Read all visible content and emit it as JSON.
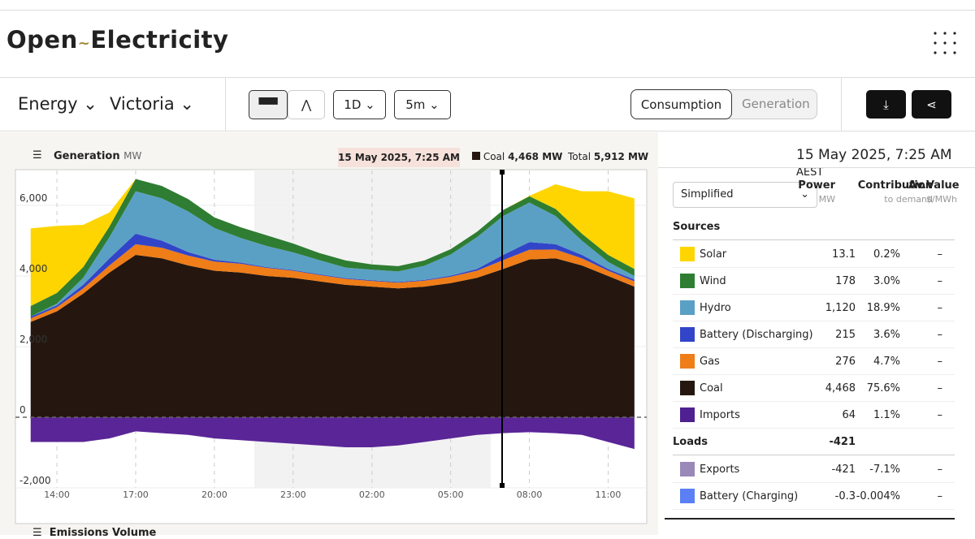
{
  "header": {
    "logo_left": "Open",
    "logo_right": "Electricity"
  },
  "toolbar": {
    "metric": "Energy",
    "region": "Victoria",
    "range": "1D",
    "interval": "5m",
    "view_active": "Consumption",
    "view_other": "Generation"
  },
  "chart_header": {
    "title": "Generation",
    "unit": "MW",
    "time": "15 May 2025, 7:25 AM",
    "hover_series": "Coal",
    "hover_value": "4,468 MW",
    "total_label": "Total",
    "total_value": "5,912 MW"
  },
  "next_chart": {
    "title": "Emissions Volume"
  },
  "chart_data": {
    "type": "area",
    "stacked": true,
    "x": [
      13,
      14,
      15,
      16,
      17,
      18,
      19,
      20,
      21,
      22,
      23,
      24,
      25,
      26,
      27,
      28,
      29,
      30,
      31,
      32,
      33,
      34,
      35,
      36
    ],
    "xlim": [
      12.42,
      36.47
    ],
    "xticks": [
      {
        "value": 14,
        "label": "14:00"
      },
      {
        "value": 17,
        "label": "17:00"
      },
      {
        "value": 20,
        "label": "20:00"
      },
      {
        "value": 23,
        "label": "23:00"
      },
      {
        "value": 26,
        "label": "02:00"
      },
      {
        "value": 29,
        "label": "05:00"
      },
      {
        "value": 32,
        "label": "08:00"
      },
      {
        "value": 35,
        "label": "11:00"
      }
    ],
    "ylim": [
      -2000,
      6990
    ],
    "yticks": [
      {
        "value": -2000,
        "label": "-2,000"
      },
      0,
      {
        "value": 2000,
        "label": "2,000"
      },
      {
        "value": 4000,
        "label": "4,000"
      },
      {
        "value": 6000,
        "label": "6,000"
      }
    ],
    "grid": true,
    "series": [
      {
        "name": "Coal",
        "color": "#25170f",
        "values": [
          2700,
          3000,
          3500,
          4100,
          4600,
          4500,
          4300,
          4150,
          4100,
          4000,
          3950,
          3850,
          3750,
          3700,
          3650,
          3700,
          3800,
          3950,
          4200,
          4470,
          4500,
          4300,
          4000,
          3700
        ]
      },
      {
        "name": "Gas",
        "color": "#ef7d18",
        "values": [
          100,
          120,
          150,
          200,
          300,
          300,
          280,
          260,
          250,
          230,
          200,
          180,
          170,
          160,
          160,
          170,
          180,
          200,
          250,
          276,
          250,
          200,
          150,
          150
        ]
      },
      {
        "name": "Battery (Discharging)",
        "color": "#3245c8",
        "values": [
          50,
          50,
          100,
          200,
          300,
          200,
          100,
          50,
          30,
          20,
          20,
          20,
          20,
          20,
          20,
          20,
          30,
          50,
          150,
          215,
          150,
          100,
          50,
          50
        ]
      },
      {
        "name": "Hydro",
        "color": "#5aa0c4",
        "values": [
          0,
          50,
          200,
          600,
          1200,
          1200,
          1150,
          900,
          700,
          600,
          500,
          400,
          300,
          300,
          300,
          400,
          600,
          900,
          1100,
          1120,
          800,
          400,
          200,
          100
        ]
      },
      {
        "name": "Wind",
        "color": "#2e7d32",
        "values": [
          300,
          300,
          300,
          300,
          350,
          350,
          350,
          300,
          300,
          300,
          250,
          200,
          200,
          150,
          150,
          150,
          150,
          150,
          170,
          178,
          200,
          200,
          200,
          200
        ]
      },
      {
        "name": "Solar",
        "color": "#fed500",
        "values": [
          2200,
          1900,
          1200,
          400,
          0,
          0,
          0,
          0,
          0,
          0,
          0,
          0,
          0,
          0,
          0,
          0,
          0,
          0,
          0,
          13,
          700,
          1200,
          1800,
          2000
        ]
      },
      {
        "name": "Exports",
        "color": "#5a2597",
        "values": [
          -700,
          -700,
          -700,
          -600,
          -400,
          -450,
          -500,
          -600,
          -650,
          -700,
          -750,
          -800,
          -850,
          -850,
          -800,
          -700,
          -600,
          -500,
          -450,
          -421,
          -450,
          -500,
          -700,
          -900
        ]
      }
    ]
  },
  "table": {
    "time": "15 May 2025, 7:25 AM",
    "tz": "AEST",
    "select": "Simplified",
    "columns": [
      {
        "name": "Power",
        "unit": "MW"
      },
      {
        "name": "Contribution",
        "unit": "to demand"
      },
      {
        "name": "Av.Value",
        "unit": "$/MWh"
      }
    ],
    "sections": [
      {
        "title": "Sources",
        "rows": [
          {
            "name": "Solar",
            "color": "#fed500",
            "power": "13.1",
            "contribution": "0.2%",
            "value": "–"
          },
          {
            "name": "Wind",
            "color": "#2e7d32",
            "power": "178",
            "contribution": "3.0%",
            "value": "–"
          },
          {
            "name": "Hydro",
            "color": "#5aa0c4",
            "power": "1,120",
            "contribution": "18.9%",
            "value": "–"
          },
          {
            "name": "Battery (Discharging)",
            "color": "#3245c8",
            "power": "215",
            "contribution": "3.6%",
            "value": "–"
          },
          {
            "name": "Gas",
            "color": "#ef7d18",
            "power": "276",
            "contribution": "4.7%",
            "value": "–"
          },
          {
            "name": "Coal",
            "color": "#25170f",
            "power": "4,468",
            "contribution": "75.6%",
            "value": "–"
          },
          {
            "name": "Imports",
            "color": "#4f2090",
            "power": "64",
            "contribution": "1.1%",
            "value": "–"
          }
        ]
      },
      {
        "title": "Loads",
        "total": "-421",
        "rows": [
          {
            "name": "Exports",
            "color": "#9a88b8",
            "power": "-421",
            "contribution": "-7.1%",
            "value": "–"
          },
          {
            "name": "Battery (Charging)",
            "color": "#5b7ff5",
            "power": "-0.3",
            "contribution": "-0.004%",
            "value": "–"
          }
        ]
      }
    ]
  }
}
